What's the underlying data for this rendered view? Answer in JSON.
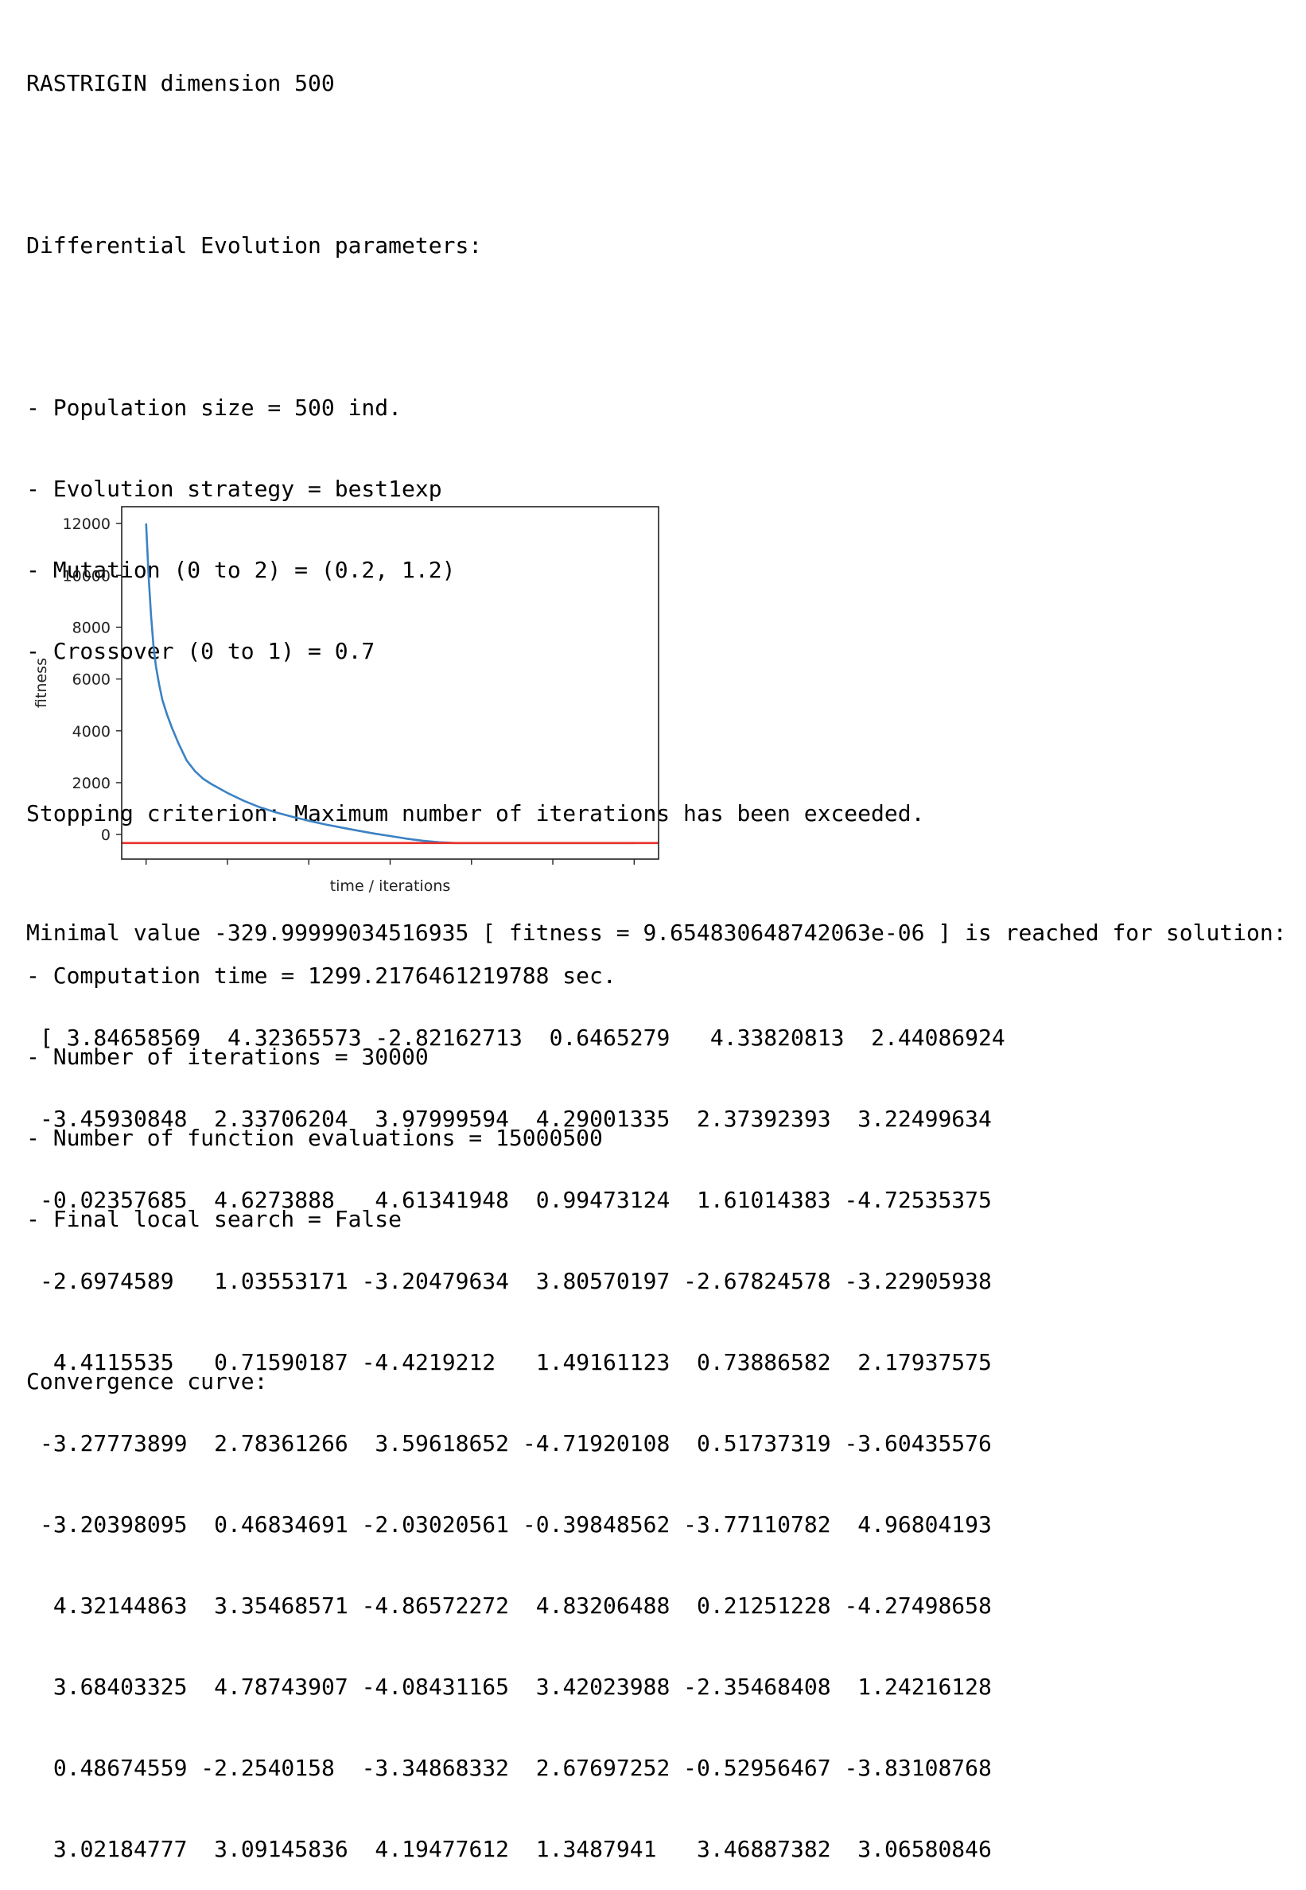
{
  "output": {
    "title": "RASTRIGIN dimension 500",
    "params_header": "Differential Evolution parameters:",
    "params": [
      "- Population size = 500 ind.",
      "- Evolution strategy = best1exp",
      "- Mutation (0 to 2) = (0.2, 1.2)",
      "- Crossover (0 to 1) = 0.7"
    ],
    "stopping": "Stopping criterion: Maximum number of iterations has been exceeded.",
    "stats": [
      "- Computation time = 1299.2176461219788 sec.",
      "- Number of iterations = 30000",
      "- Number of function evaluations = 15000500",
      "- Final local search = False"
    ],
    "convergence_label": "Convergence curve:",
    "minimal": "Minimal value -329.99999034516935 [ fitness = 9.654830648742063e-06 ] is reached for solution:",
    "solution_rows": [
      "[ 3.84658569  4.32365573 -2.82162713  0.6465279   4.33820813  2.44086924",
      "-3.45930848  2.33706204  3.97999594  4.29001335  2.37392393  3.22499634",
      "-0.02357685  4.6273888   4.61341948  0.99473124  1.61014383 -4.72535375",
      "-2.6974589   1.03553171 -3.20479634  3.80570197 -2.67824578 -3.22905938",
      " 4.4115535   0.71590187 -4.4219212   1.49161123  0.73886582  2.17937575",
      "-3.27773899  2.78361266  3.59618652 -4.71920108  0.51737319 -3.60435576",
      "-3.20398095  0.46834691 -2.03020561 -0.39848562 -3.77110782  4.96804193",
      " 4.32144863  3.35468571 -4.86572272  4.83206488  0.21251228 -4.27498658",
      " 3.68403325  4.78743907 -4.08431165  3.42023988 -2.35468408  1.24216128",
      " 0.48674559 -2.2540158  -3.34868332  2.67697252 -0.52956467 -3.83108768",
      " 3.02184777  3.09145836  4.19477612  1.3487941   3.46887382  3.06580846"
    ]
  },
  "chart_data": {
    "type": "line",
    "xlabel": "time / iterations",
    "ylabel": "fitness",
    "yticks": [
      0,
      2000,
      4000,
      6000,
      8000,
      10000,
      12000
    ],
    "ylim": [
      -950,
      12650
    ],
    "xlim": [
      -1500,
      31500
    ],
    "x_tick_positions": [
      0,
      5000,
      10000,
      15000,
      20000,
      25000,
      30000
    ],
    "series": [
      {
        "color": "#3b82c4",
        "x": [
          0,
          150,
          300,
          450,
          600,
          800,
          1000,
          1300,
          1600,
          2000,
          2500,
          3000,
          3500,
          4000,
          5000,
          6000,
          7000,
          8000,
          9000,
          10000,
          11000,
          12000,
          13000,
          14000,
          15000,
          16000,
          17000,
          18000,
          19000,
          19500,
          20000,
          22000,
          25000,
          28000,
          30000
        ],
        "y": [
          12000,
          10000,
          8500,
          7300,
          6500,
          5800,
          5200,
          4600,
          4100,
          3500,
          2850,
          2450,
          2150,
          1950,
          1600,
          1300,
          1050,
          850,
          680,
          530,
          390,
          270,
          150,
          40,
          -60,
          -160,
          -240,
          -300,
          -330,
          -330,
          -330,
          -330,
          -330,
          -330,
          -330
        ]
      },
      {
        "color": "#e8312a",
        "x": [
          -1500,
          31500
        ],
        "y": [
          -330,
          -330
        ]
      }
    ]
  }
}
